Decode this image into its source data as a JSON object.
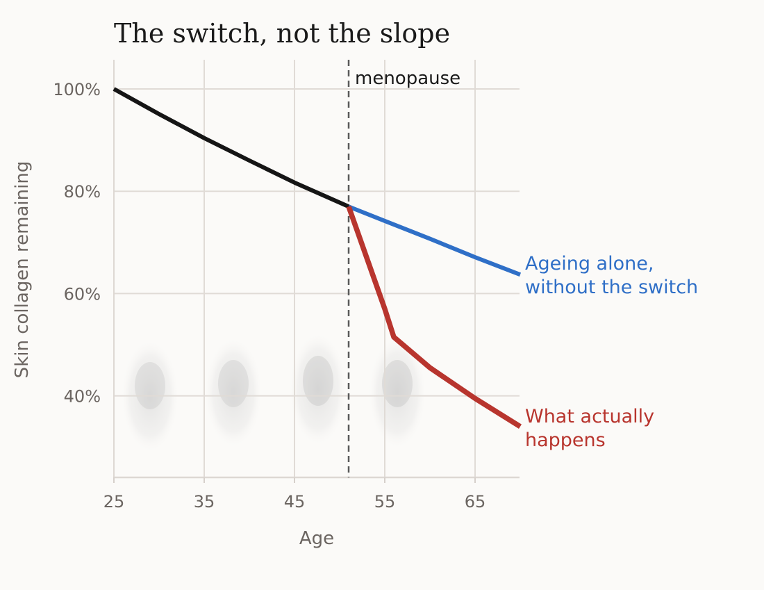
{
  "chart_data": {
    "type": "line",
    "title": "The switch, not the slope",
    "xlabel": "Age",
    "ylabel": "Skin collagen remaining",
    "xlim": [
      25,
      70
    ],
    "ylim": [
      24,
      106
    ],
    "x_ticks": [
      25,
      35,
      45,
      55,
      65
    ],
    "x_tick_labels": [
      "25",
      "35",
      "45",
      "55",
      "65"
    ],
    "y_ticks": [
      100,
      80,
      60,
      40
    ],
    "y_tick_labels": [
      "100%",
      "80%",
      "60%",
      "40%"
    ],
    "grid": true,
    "annotations": [
      {
        "type": "vline",
        "x": 51,
        "label": "menopause",
        "style": "dashed"
      }
    ],
    "series": [
      {
        "x": [
          25,
          30,
          35,
          40,
          45,
          51
        ],
        "values": [
          100,
          95.1,
          90.4,
          86,
          81.7,
          77
        ],
        "color": "#151515"
      },
      {
        "name": "Ageing alone, without the switch",
        "x": [
          51,
          55,
          60,
          65,
          70
        ],
        "values": [
          77,
          74.2,
          70.7,
          67.1,
          63.7
        ],
        "color": "#2f6fc7"
      },
      {
        "name": "What actually happens",
        "x": [
          51,
          53,
          55,
          56,
          60,
          65,
          70
        ],
        "values": [
          77,
          67,
          57,
          51.5,
          45.5,
          39.5,
          34
        ],
        "color": "#b8352e"
      }
    ],
    "background_decoration": "faded-face-images"
  }
}
